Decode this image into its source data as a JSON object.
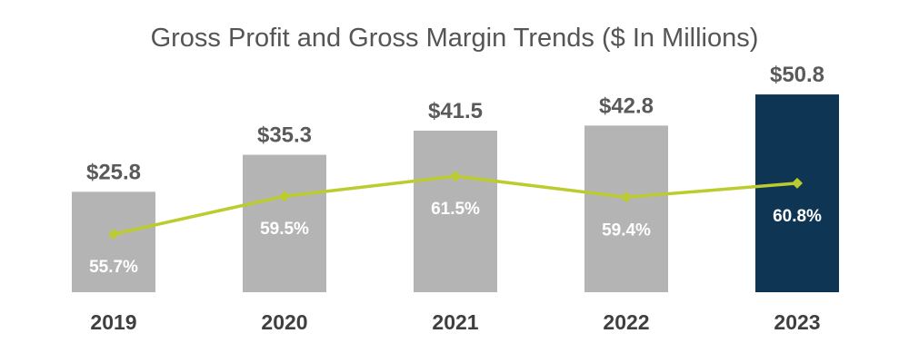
{
  "colors": {
    "bar_default": "#b4b4b4",
    "bar_highlight": "#0e3553",
    "line": "#bccb2e",
    "value_label": "#5a5a5a",
    "margin_label": "#ffffff",
    "axis_label": "#3f3f3f"
  },
  "chart_data": {
    "type": "bar",
    "title": "Gross Profit and Gross Margin Trends ($ In Millions)",
    "xlabel": "",
    "ylabel": "",
    "grid": false,
    "categories": [
      "2019",
      "2020",
      "2021",
      "2022",
      "2023"
    ],
    "series": [
      {
        "name": "Gross Profit",
        "type": "bar",
        "values": [
          25.8,
          35.3,
          41.5,
          42.8,
          50.8
        ],
        "labels": [
          "$25.8",
          "$35.3",
          "$41.5",
          "$42.8",
          "$50.8"
        ],
        "highlight_index": 4
      },
      {
        "name": "Gross Margin",
        "type": "line",
        "values": [
          55.7,
          59.5,
          61.5,
          59.4,
          60.8
        ],
        "labels": [
          "55.7%",
          "59.5%",
          "61.5%",
          "59.4%",
          "60.8%"
        ]
      }
    ]
  }
}
